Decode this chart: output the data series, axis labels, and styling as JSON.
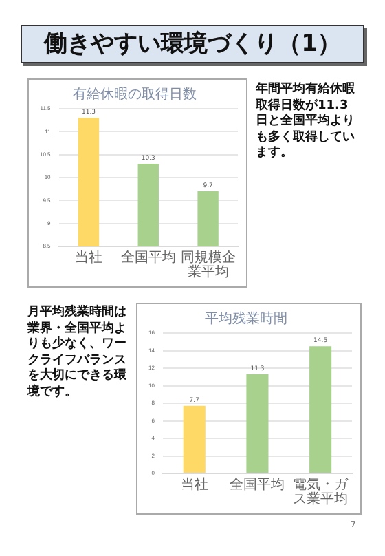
{
  "chart_data": [
    {
      "type": "other",
      "title": "働きやすい環境づくり（1）",
      "annotations": [
        "7"
      ]
    },
    {
      "type": "bar",
      "title": "有給休暇の取得日数",
      "categories": [
        "当社",
        "全国平均",
        "同規模企業平均"
      ],
      "values": [
        11.3,
        10.3,
        9.7
      ],
      "colors": [
        "#ffd966",
        "#a9d18e",
        "#a9d18e"
      ],
      "ylim": [
        8.5,
        11.5
      ],
      "yticks": [
        8.5,
        9,
        9.5,
        10,
        10.5,
        11,
        11.5
      ],
      "grid": "y",
      "data_labels": true,
      "annotations": [
        "年間平均有給休暇取得日数が11.3日と全国平均よりも多く取得しています。"
      ]
    },
    {
      "type": "bar",
      "title": "平均残業時間",
      "categories": [
        "当社",
        "全国平均",
        "電気・ガス業平均"
      ],
      "values": [
        7.7,
        11.3,
        14.5
      ],
      "colors": [
        "#ffd966",
        "#a9d18e",
        "#a9d18e"
      ],
      "ylim": [
        0,
        16
      ],
      "yticks": [
        0,
        2,
        4,
        6,
        8,
        10,
        12,
        14,
        16
      ],
      "grid": "y",
      "data_labels": true,
      "annotations": [
        "月平均残業時間は業界・全国平均よりも少なく、ワークライフバランスを大切にできる環境です。"
      ]
    }
  ]
}
